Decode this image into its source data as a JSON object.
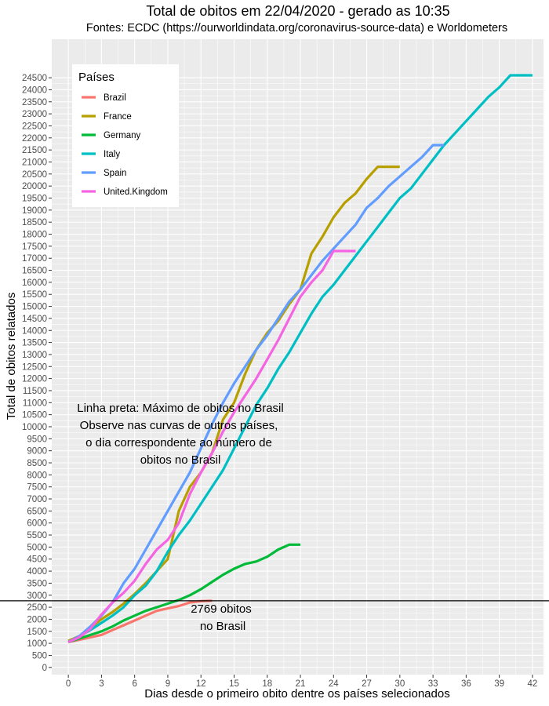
{
  "chart_data": {
    "type": "line",
    "title": "Total de obitos em 22/04/2020 - gerado as 10:35",
    "subtitle": "Fontes: ECDC (https://ourworldindata.org/coronavirus-source-data) e Worldometers",
    "xlabel": "Dias desde o primeiro obito dentre os países selecionados",
    "ylabel": "Total de obitos relatados",
    "xlim": [
      -1.5,
      43
    ],
    "ylim": [
      -300,
      26100
    ],
    "x_ticks": [
      0,
      3,
      6,
      9,
      12,
      15,
      18,
      21,
      24,
      27,
      30,
      33,
      36,
      39,
      42
    ],
    "y_ticks": [
      0,
      500,
      1000,
      1500,
      2000,
      2500,
      3000,
      3500,
      4000,
      4500,
      5000,
      5500,
      6000,
      6500,
      7000,
      7500,
      8000,
      8500,
      9000,
      9500,
      10000,
      10500,
      11000,
      11500,
      12000,
      12500,
      13000,
      13500,
      14000,
      14500,
      15000,
      15500,
      16000,
      16500,
      17000,
      17500,
      18000,
      18500,
      19000,
      19500,
      20000,
      20500,
      21000,
      21500,
      22000,
      22500,
      23000,
      23500,
      24000,
      24500
    ],
    "grid": true,
    "legend": {
      "title": "Países",
      "position": "top-left"
    },
    "series": [
      {
        "name": "Brazil",
        "color": "#F8766D",
        "x": [
          0,
          1,
          2,
          3,
          4,
          5,
          6,
          7,
          8,
          9,
          10,
          11,
          12,
          13
        ],
        "y": [
          1050,
          1150,
          1250,
          1350,
          1550,
          1750,
          1950,
          2150,
          2350,
          2450,
          2550,
          2700,
          2750,
          2769
        ]
      },
      {
        "name": "France",
        "color": "#B79F00",
        "x": [
          0,
          1,
          2,
          3,
          4,
          5,
          6,
          7,
          8,
          9,
          10,
          11,
          12,
          13,
          14,
          15,
          16,
          17,
          18,
          19,
          20,
          21,
          22,
          23,
          24,
          25,
          26,
          27,
          28,
          29,
          30
        ],
        "y": [
          1100,
          1300,
          1650,
          2000,
          2300,
          2650,
          3050,
          3500,
          4000,
          4500,
          6500,
          7500,
          8100,
          8900,
          10300,
          11000,
          12200,
          13200,
          13900,
          14400,
          15100,
          15700,
          17200,
          17900,
          18700,
          19300,
          19700,
          20300,
          20800,
          20800,
          20800
        ]
      },
      {
        "name": "Germany",
        "color": "#00BA38",
        "x": [
          0,
          1,
          2,
          3,
          4,
          5,
          6,
          7,
          8,
          9,
          10,
          11,
          12,
          13,
          14,
          15,
          16,
          17,
          18,
          19,
          20,
          21
        ],
        "y": [
          1050,
          1200,
          1350,
          1500,
          1700,
          1950,
          2150,
          2350,
          2500,
          2650,
          2800,
          3000,
          3250,
          3550,
          3850,
          4100,
          4300,
          4400,
          4600,
          4900,
          5100,
          5100
        ]
      },
      {
        "name": "Italy",
        "color": "#00BFC4",
        "x": [
          0,
          1,
          2,
          3,
          4,
          5,
          6,
          7,
          8,
          9,
          10,
          11,
          12,
          13,
          14,
          15,
          16,
          17,
          18,
          19,
          20,
          21,
          22,
          23,
          24,
          25,
          26,
          27,
          28,
          29,
          30,
          31,
          32,
          33,
          34,
          35,
          36,
          37,
          38,
          39,
          40,
          41,
          42
        ],
        "y": [
          1050,
          1300,
          1550,
          1850,
          2150,
          2500,
          3000,
          3400,
          4000,
          4800,
          5500,
          6100,
          6800,
          7500,
          8200,
          9100,
          10000,
          10900,
          11600,
          12400,
          13100,
          13900,
          14700,
          15400,
          15900,
          16500,
          17100,
          17700,
          18300,
          18900,
          19500,
          19900,
          20500,
          21100,
          21700,
          22200,
          22700,
          23200,
          23700,
          24100,
          24600,
          24600,
          24600
        ]
      },
      {
        "name": "Spain",
        "color": "#619CFF",
        "x": [
          0,
          1,
          2,
          3,
          4,
          5,
          6,
          7,
          8,
          9,
          10,
          11,
          12,
          13,
          14,
          15,
          16,
          17,
          18,
          19,
          20,
          21,
          22,
          23,
          24,
          25,
          26,
          27,
          28,
          29,
          30,
          31,
          32,
          33,
          34
        ],
        "y": [
          1050,
          1300,
          1700,
          2150,
          2700,
          3500,
          4100,
          4900,
          5700,
          6500,
          7300,
          8100,
          9100,
          10100,
          11000,
          11800,
          12500,
          13200,
          13800,
          14500,
          15200,
          15700,
          16300,
          16900,
          17400,
          17900,
          18400,
          19100,
          19500,
          20000,
          20400,
          20800,
          21200,
          21700,
          21700
        ]
      },
      {
        "name": "United.Kingdom",
        "color": "#F564E3",
        "x": [
          0,
          1,
          2,
          3,
          4,
          5,
          6,
          7,
          8,
          9,
          10,
          11,
          12,
          13,
          14,
          15,
          16,
          17,
          18,
          19,
          20,
          21,
          22,
          23,
          24,
          25,
          26
        ],
        "y": [
          1050,
          1250,
          1600,
          2200,
          2700,
          3100,
          3600,
          4300,
          4900,
          5300,
          6000,
          7200,
          8100,
          8900,
          9800,
          10600,
          11300,
          12000,
          12800,
          13600,
          14500,
          15400,
          16000,
          16500,
          17300,
          17300,
          17300
        ]
      }
    ],
    "hline": {
      "y": 2769,
      "color": "#000000"
    },
    "annotations": {
      "brazil_max_line1": "2769 obitos",
      "brazil_max_line2": "no Brasil",
      "note_line1": "Linha preta: Máximo de obitos no Brasil",
      "note_line2": "Observe nas curvas de outros países,",
      "note_line3": "o dia correspondente ao número de",
      "note_line4": "obitos no Brasil"
    },
    "colors": {
      "panel_background": "#EBEBEB",
      "grid": "#FFFFFF",
      "tick_text": "#4D4D4D"
    }
  }
}
